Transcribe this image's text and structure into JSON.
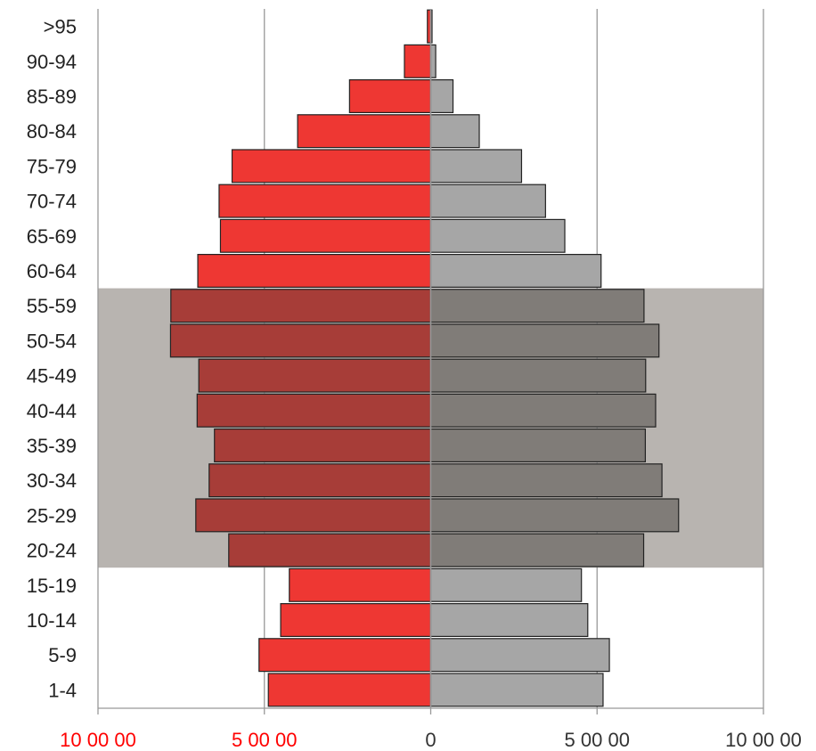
{
  "chart_data": {
    "type": "bar",
    "orientation": "horizontal",
    "subtype": "population-pyramid",
    "categories": [
      "1-4",
      "5-9",
      "10-14",
      "15-19",
      "20-24",
      "25-29",
      "30-34",
      "35-39",
      "40-44",
      "45-49",
      "50-54",
      "55-59",
      "60-64",
      "65-69",
      "70-74",
      "75-79",
      "80-84",
      "85-89",
      "90-94",
      ">95"
    ],
    "series": [
      {
        "values": [
          488000,
          516000,
          451000,
          425000,
          607000,
          706000,
          666000,
          650000,
          702000,
          697000,
          782000,
          781000,
          700000,
          632000,
          636000,
          597000,
          400000,
          244000,
          79000,
          10000
        ]
      },
      {
        "values": [
          518000,
          537000,
          472000,
          453000,
          640000,
          745000,
          695000,
          645000,
          676000,
          646000,
          686000,
          641000,
          512000,
          403000,
          345000,
          273000,
          146000,
          67000,
          15000,
          4000
        ]
      }
    ],
    "xlim": [
      -1000000,
      1000000
    ],
    "x_ticks": [
      {
        "value": -1000000,
        "label": "10 00 00"
      },
      {
        "value": -500000,
        "label": "5 00 00"
      },
      {
        "value": 0,
        "label": "0"
      },
      {
        "value": 500000,
        "label": "5 00 00"
      },
      {
        "value": 1000000,
        "label": "10 00 00"
      }
    ],
    "highlight_band": {
      "from_category": "20-24",
      "to_category": "55-59"
    },
    "grid": true,
    "legend": "none",
    "colors": {
      "left_normal": "#ee3733",
      "left_highlight": "#a73d38",
      "right_normal": "#a6a6a6",
      "right_highlight": "#807c78",
      "band": "#b8b4b0",
      "left_tick_text": "#ff0000",
      "right_tick_text": "#333333",
      "grid": "#999999",
      "bar_stroke": "#222222"
    }
  }
}
